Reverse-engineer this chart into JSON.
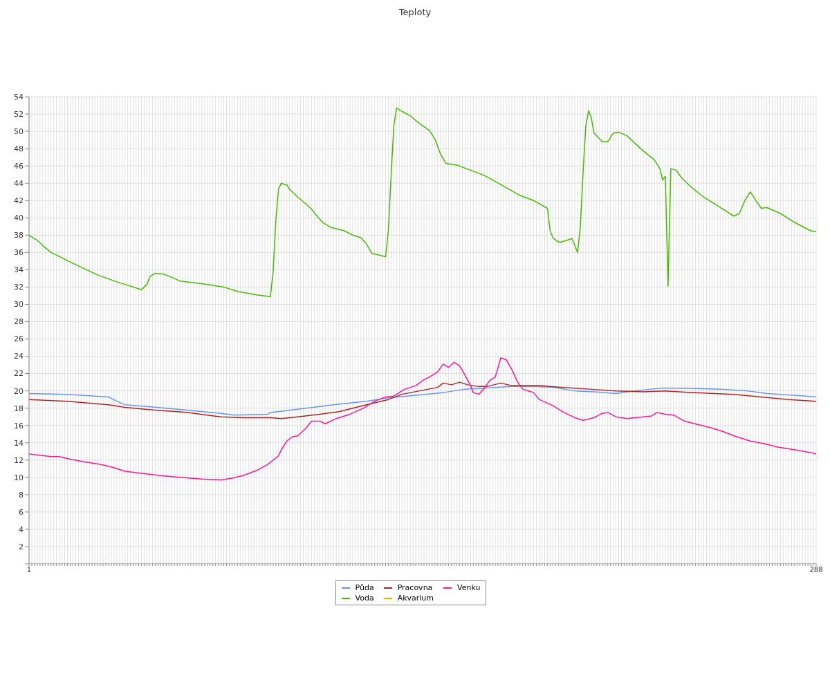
{
  "chart_data": {
    "type": "line",
    "title": "Teploty",
    "xlim": [
      1,
      288
    ],
    "xticks": [
      1,
      {
        "value": 2,
        "label": null
      },
      {
        "value": 3,
        "label": null
      },
      {
        "value": 4,
        "label": null
      },
      {
        "value": 5,
        "label": null
      },
      {
        "value": 6,
        "label": null
      },
      {
        "value": 7,
        "label": null
      },
      {
        "value": 8,
        "label": null
      },
      {
        "value": 9,
        "label": null
      },
      {
        "value": 10,
        "label": null
      },
      {
        "value": 11,
        "label": null
      },
      {
        "value": 12,
        "label": null
      },
      {
        "value": 13,
        "label": null
      },
      {
        "value": 14,
        "label": null
      },
      {
        "value": 15,
        "label": null
      },
      {
        "value": 16,
        "label": null
      },
      {
        "value": 17,
        "label": null
      },
      {
        "value": 18,
        "label": null
      },
      {
        "value": 19,
        "label": null
      },
      {
        "value": 20,
        "label": null
      },
      {
        "value": 21,
        "label": null
      },
      {
        "value": 22,
        "label": null
      },
      {
        "value": 23,
        "label": null
      },
      {
        "value": 24,
        "label": null
      },
      {
        "value": 25,
        "label": null
      },
      {
        "value": 26,
        "label": null
      },
      {
        "value": 27,
        "label": null
      },
      {
        "value": 28,
        "label": null
      },
      {
        "value": 29,
        "label": null
      },
      {
        "value": 30,
        "label": null
      },
      {
        "value": 31,
        "label": null
      },
      {
        "value": 32,
        "label": null
      },
      {
        "value": 33,
        "label": null
      },
      {
        "value": 34,
        "label": null
      },
      {
        "value": 35,
        "label": null
      },
      {
        "value": 36,
        "label": null
      },
      {
        "value": 37,
        "label": null
      },
      {
        "value": 38,
        "label": null
      },
      {
        "value": 39,
        "label": null
      },
      {
        "value": 40,
        "label": null
      },
      {
        "value": 41,
        "label": null
      },
      {
        "value": 42,
        "label": null
      },
      {
        "value": 43,
        "label": null
      },
      {
        "value": 44,
        "label": null
      },
      {
        "value": 45,
        "label": null
      },
      {
        "value": 46,
        "label": null
      },
      {
        "value": 47,
        "label": null
      },
      {
        "value": 48,
        "label": null
      },
      {
        "value": 49,
        "label": null
      },
      {
        "value": 50,
        "label": null
      },
      {
        "value": 51,
        "label": null
      },
      {
        "value": 52,
        "label": null
      },
      {
        "value": 53,
        "label": null
      },
      {
        "value": 54,
        "label": null
      },
      {
        "value": 55,
        "label": null
      },
      {
        "value": 56,
        "label": null
      },
      {
        "value": 57,
        "label": null
      },
      {
        "value": 58,
        "label": null
      },
      {
        "value": 59,
        "label": null
      },
      {
        "value": 60,
        "label": null
      },
      {
        "value": 61,
        "label": null
      },
      {
        "value": 62,
        "label": null
      },
      {
        "value": 63,
        "label": null
      },
      {
        "value": 64,
        "label": null
      },
      {
        "value": 65,
        "label": null
      },
      {
        "value": 66,
        "label": null
      },
      {
        "value": 67,
        "label": null
      },
      {
        "value": 68,
        "label": null
      },
      {
        "value": 69,
        "label": null
      },
      {
        "value": 70,
        "label": null
      },
      {
        "value": 71,
        "label": null
      },
      {
        "value": 72,
        "label": null
      },
      {
        "value": 73,
        "label": null
      },
      {
        "value": 74,
        "label": null
      },
      {
        "value": 75,
        "label": null
      },
      {
        "value": 76,
        "label": null
      },
      {
        "value": 77,
        "label": null
      },
      {
        "value": 78,
        "label": null
      },
      {
        "value": 79,
        "label": null
      },
      {
        "value": 80,
        "label": null
      },
      {
        "value": 81,
        "label": null
      },
      {
        "value": 82,
        "label": null
      },
      {
        "value": 83,
        "label": null
      },
      {
        "value": 84,
        "label": null
      },
      {
        "value": 85,
        "label": null
      },
      {
        "value": 86,
        "label": null
      },
      {
        "value": 87,
        "label": null
      },
      {
        "value": 88,
        "label": null
      },
      {
        "value": 89,
        "label": null
      },
      {
        "value": 90,
        "label": null
      },
      {
        "value": 91,
        "label": null
      },
      {
        "value": 92,
        "label": null
      },
      {
        "value": 93,
        "label": null
      },
      {
        "value": 94,
        "label": null
      },
      {
        "value": 95,
        "label": null
      },
      {
        "value": 96,
        "label": null
      },
      {
        "value": 97,
        "label": null
      },
      {
        "value": 98,
        "label": null
      },
      {
        "value": 99,
        "label": null
      },
      {
        "value": 100,
        "label": null
      },
      {
        "value": 101,
        "label": null
      },
      {
        "value": 102,
        "label": null
      },
      {
        "value": 103,
        "label": null
      },
      {
        "value": 104,
        "label": null
      },
      {
        "value": 105,
        "label": null
      },
      {
        "value": 106,
        "label": null
      },
      {
        "value": 107,
        "label": null
      },
      {
        "value": 108,
        "label": null
      },
      {
        "value": 109,
        "label": null
      },
      {
        "value": 110,
        "label": null
      },
      {
        "value": 111,
        "label": null
      },
      {
        "value": 112,
        "label": null
      },
      {
        "value": 113,
        "label": null
      },
      {
        "value": 114,
        "label": null
      },
      {
        "value": 115,
        "label": null
      },
      {
        "value": 116,
        "label": null
      },
      {
        "value": 117,
        "label": null
      },
      {
        "value": 118,
        "label": null
      },
      {
        "value": 119,
        "label": null
      },
      {
        "value": 120,
        "label": null
      },
      {
        "value": 121,
        "label": null
      },
      {
        "value": 122,
        "label": null
      },
      {
        "value": 123,
        "label": null
      },
      {
        "value": 124,
        "label": null
      },
      {
        "value": 125,
        "label": null
      },
      {
        "value": 126,
        "label": null
      },
      {
        "value": 127,
        "label": null
      },
      {
        "value": 128,
        "label": null
      },
      {
        "value": 129,
        "label": null
      },
      {
        "value": 130,
        "label": null
      },
      {
        "value": 131,
        "label": null
      },
      {
        "value": 132,
        "label": null
      },
      {
        "value": 133,
        "label": null
      },
      {
        "value": 134,
        "label": null
      },
      {
        "value": 135,
        "label": null
      },
      {
        "value": 136,
        "label": null
      },
      {
        "value": 137,
        "label": null
      },
      {
        "value": 138,
        "label": null
      },
      {
        "value": 139,
        "label": null
      },
      {
        "value": 140,
        "label": null
      },
      {
        "value": 141,
        "label": null
      },
      {
        "value": 142,
        "label": null
      },
      {
        "value": 143,
        "label": null
      },
      {
        "value": 144,
        "label": null
      },
      {
        "value": 145,
        "label": null
      },
      {
        "value": 146,
        "label": null
      },
      {
        "value": 147,
        "label": null
      },
      {
        "value": 148,
        "label": null
      },
      {
        "value": 149,
        "label": null
      },
      {
        "value": 150,
        "label": null
      },
      {
        "value": 151,
        "label": null
      },
      {
        "value": 152,
        "label": null
      },
      {
        "value": 153,
        "label": null
      },
      {
        "value": 154,
        "label": null
      },
      {
        "value": 155,
        "label": null
      },
      {
        "value": 156,
        "label": null
      },
      {
        "value": 157,
        "label": null
      },
      {
        "value": 158,
        "label": null
      },
      {
        "value": 159,
        "label": null
      },
      {
        "value": 160,
        "label": null
      },
      {
        "value": 161,
        "label": null
      },
      {
        "value": 162,
        "label": null
      },
      {
        "value": 163,
        "label": null
      },
      {
        "value": 164,
        "label": null
      },
      {
        "value": 165,
        "label": null
      },
      {
        "value": 166,
        "label": null
      },
      {
        "value": 167,
        "label": null
      },
      {
        "value": 168,
        "label": null
      },
      {
        "value": 169,
        "label": null
      },
      {
        "value": 170,
        "label": null
      },
      {
        "value": 171,
        "label": null
      },
      {
        "value": 172,
        "label": null
      },
      {
        "value": 173,
        "label": null
      },
      {
        "value": 174,
        "label": null
      },
      {
        "value": 175,
        "label": null
      },
      {
        "value": 176,
        "label": null
      },
      {
        "value": 177,
        "label": null
      },
      {
        "value": 178,
        "label": null
      },
      {
        "value": 179,
        "label": null
      },
      {
        "value": 180,
        "label": null
      },
      {
        "value": 181,
        "label": null
      },
      {
        "value": 182,
        "label": null
      },
      {
        "value": 183,
        "label": null
      },
      {
        "value": 184,
        "label": null
      },
      {
        "value": 185,
        "label": null
      },
      {
        "value": 186,
        "label": null
      },
      {
        "value": 187,
        "label": null
      },
      {
        "value": 188,
        "label": null
      },
      {
        "value": 189,
        "label": null
      },
      {
        "value": 190,
        "label": null
      },
      {
        "value": 191,
        "label": null
      },
      {
        "value": 192,
        "label": null
      },
      {
        "value": 193,
        "label": null
      },
      {
        "value": 194,
        "label": null
      },
      {
        "value": 195,
        "label": null
      },
      {
        "value": 196,
        "label": null
      },
      {
        "value": 197,
        "label": null
      },
      {
        "value": 198,
        "label": null
      },
      {
        "value": 199,
        "label": null
      },
      {
        "value": 200,
        "label": null
      },
      {
        "value": 201,
        "label": null
      },
      {
        "value": 202,
        "label": null
      },
      {
        "value": 203,
        "label": null
      },
      {
        "value": 204,
        "label": null
      },
      {
        "value": 205,
        "label": null
      },
      {
        "value": 206,
        "label": null
      },
      {
        "value": 207,
        "label": null
      },
      {
        "value": 208,
        "label": null
      },
      {
        "value": 209,
        "label": null
      },
      {
        "value": 210,
        "label": null
      },
      {
        "value": 211,
        "label": null
      },
      {
        "value": 212,
        "label": null
      },
      {
        "value": 213,
        "label": null
      },
      {
        "value": 214,
        "label": null
      },
      {
        "value": 215,
        "label": null
      },
      {
        "value": 216,
        "label": null
      },
      {
        "value": 217,
        "label": null
      },
      {
        "value": 218,
        "label": null
      },
      {
        "value": 219,
        "label": null
      },
      {
        "value": 220,
        "label": null
      },
      {
        "value": 221,
        "label": null
      },
      {
        "value": 222,
        "label": null
      },
      {
        "value": 223,
        "label": null
      },
      {
        "value": 224,
        "label": null
      },
      {
        "value": 225,
        "label": null
      },
      {
        "value": 226,
        "label": null
      },
      {
        "value": 227,
        "label": null
      },
      {
        "value": 228,
        "label": null
      },
      {
        "value": 229,
        "label": null
      },
      {
        "value": 230,
        "label": null
      },
      {
        "value": 231,
        "label": null
      },
      {
        "value": 232,
        "label": null
      },
      {
        "value": 233,
        "label": null
      },
      {
        "value": 234,
        "label": null
      },
      {
        "value": 235,
        "label": null
      },
      {
        "value": 236,
        "label": null
      },
      {
        "value": 237,
        "label": null
      },
      {
        "value": 238,
        "label": null
      },
      {
        "value": 239,
        "label": null
      },
      {
        "value": 240,
        "label": null
      },
      {
        "value": 241,
        "label": null
      },
      {
        "value": 242,
        "label": null
      },
      {
        "value": 243,
        "label": null
      },
      {
        "value": 244,
        "label": null
      },
      {
        "value": 245,
        "label": null
      },
      {
        "value": 246,
        "label": null
      },
      {
        "value": 247,
        "label": null
      },
      {
        "value": 248,
        "label": null
      },
      {
        "value": 249,
        "label": null
      },
      {
        "value": 250,
        "label": null
      },
      {
        "value": 251,
        "label": null
      },
      {
        "value": 252,
        "label": null
      },
      {
        "value": 253,
        "label": null
      },
      {
        "value": 254,
        "label": null
      },
      {
        "value": 255,
        "label": null
      },
      {
        "value": 256,
        "label": null
      },
      {
        "value": 257,
        "label": null
      },
      {
        "value": 258,
        "label": null
      },
      {
        "value": 259,
        "label": null
      },
      {
        "value": 260,
        "label": null
      },
      {
        "value": 261,
        "label": null
      },
      {
        "value": 262,
        "label": null
      },
      {
        "value": 263,
        "label": null
      },
      {
        "value": 264,
        "label": null
      },
      {
        "value": 265,
        "label": null
      },
      {
        "value": 266,
        "label": null
      },
      {
        "value": 267,
        "label": null
      },
      {
        "value": 268,
        "label": null
      },
      {
        "value": 269,
        "label": null
      },
      {
        "value": 270,
        "label": null
      },
      {
        "value": 271,
        "label": null
      },
      {
        "value": 272,
        "label": null
      },
      {
        "value": 273,
        "label": null
      },
      {
        "value": 274,
        "label": null
      },
      {
        "value": 275,
        "label": null
      },
      {
        "value": 276,
        "label": null
      },
      {
        "value": 277,
        "label": null
      },
      {
        "value": 278,
        "label": null
      },
      {
        "value": 279,
        "label": null
      },
      {
        "value": 280,
        "label": null
      },
      {
        "value": 281,
        "label": null
      },
      {
        "value": 282,
        "label": null
      },
      {
        "value": 283,
        "label": null
      },
      {
        "value": 284,
        "label": null
      },
      {
        "value": 285,
        "label": null
      },
      {
        "value": 286,
        "label": null
      },
      {
        "value": 287,
        "label": null
      },
      288
    ],
    "ylim": [
      0,
      54
    ],
    "yticks": [
      {
        "value": 0,
        "label": null
      },
      2,
      4,
      6,
      8,
      10,
      12,
      14,
      16,
      18,
      20,
      22,
      24,
      26,
      28,
      30,
      32,
      34,
      36,
      38,
      40,
      42,
      44,
      46,
      48,
      50,
      52,
      54
    ],
    "grid": true,
    "legend": "bottom",
    "series": [
      {
        "name": "Půda",
        "color": "#6495ed",
        "x": [
          1,
          15,
          30,
          33,
          36,
          44,
          51,
          61,
          71,
          76,
          88,
          89,
          102,
          112,
          124,
          132,
          142,
          152,
          160,
          167,
          177,
          185,
          192,
          200,
          207,
          215,
          222,
          231,
          240,
          253,
          263,
          270,
          280,
          288
        ],
        "values": [
          19.7,
          19.6,
          19.3,
          18.8,
          18.4,
          18.2,
          18.0,
          17.7,
          17.4,
          17.2,
          17.3,
          17.5,
          18.0,
          18.4,
          18.8,
          19.2,
          19.5,
          19.8,
          20.2,
          20.3,
          20.5,
          20.5,
          20.4,
          20.0,
          19.9,
          19.7,
          20.0,
          20.3,
          20.3,
          20.2,
          20.0,
          19.7,
          19.5,
          19.3
        ]
      },
      {
        "name": "Voda",
        "color": "#44bb00",
        "x": [
          1,
          4,
          6,
          9,
          11,
          16,
          20,
          26,
          33,
          38,
          42,
          44,
          45,
          47,
          50,
          54,
          56,
          64,
          72,
          77,
          84,
          89,
          90,
          91,
          92,
          93,
          95,
          96,
          99,
          102,
          104,
          106,
          108,
          111,
          116,
          119,
          122,
          124,
          126,
          131,
          132,
          133,
          134,
          135,
          137,
          140,
          143,
          147,
          149,
          151,
          153,
          157,
          162,
          167,
          171,
          176,
          180,
          185,
          190,
          191,
          192,
          194,
          195,
          199,
          201,
          202,
          203,
          204,
          205,
          206,
          207,
          210,
          212,
          214,
          216,
          219,
          224,
          229,
          231,
          232,
          233,
          234,
          235,
          237,
          239,
          243,
          247,
          253,
          258,
          260,
          262,
          264,
          266,
          268,
          270,
          275,
          280,
          286,
          288
        ],
        "values": [
          38.0,
          37.4,
          36.8,
          36.0,
          35.7,
          34.9,
          34.3,
          33.4,
          32.6,
          32.1,
          31.7,
          32.3,
          33.2,
          33.6,
          33.5,
          33.0,
          32.7,
          32.4,
          32.0,
          31.5,
          31.1,
          30.9,
          33.8,
          39.8,
          43.4,
          44.0,
          43.8,
          43.3,
          42.4,
          41.6,
          41.0,
          40.2,
          39.5,
          38.9,
          38.5,
          38.0,
          37.7,
          37.0,
          35.9,
          35.5,
          38.5,
          44.8,
          50.6,
          52.7,
          52.3,
          51.8,
          51.0,
          50.1,
          49.1,
          47.4,
          46.3,
          46.1,
          45.5,
          44.9,
          44.2,
          43.3,
          42.6,
          42.0,
          41.1,
          38.5,
          37.7,
          37.2,
          37.2,
          37.6,
          36.0,
          38.9,
          45.2,
          50.6,
          52.4,
          51.6,
          49.8,
          48.8,
          48.8,
          49.8,
          49.9,
          49.5,
          48.0,
          46.7,
          45.7,
          44.4,
          44.8,
          32.1,
          45.7,
          45.5,
          44.6,
          43.4,
          42.4,
          41.2,
          40.2,
          40.5,
          42.0,
          43.0,
          42.0,
          41.1,
          41.2,
          40.5,
          39.5,
          38.5,
          38.4
        ]
      },
      {
        "name": "Pracovna",
        "color": "#b22222",
        "x": [
          1,
          15,
          30,
          36,
          46,
          59,
          66,
          71,
          79,
          89,
          93,
          99,
          107,
          114,
          119,
          124,
          128,
          132,
          137,
          145,
          150,
          152,
          155,
          158,
          161,
          165,
          168,
          173,
          177,
          187,
          195,
          205,
          215,
          225,
          233,
          243,
          258,
          268,
          278,
          288
        ],
        "values": [
          19.0,
          18.8,
          18.4,
          18.1,
          17.8,
          17.5,
          17.2,
          17.0,
          16.9,
          16.9,
          16.8,
          17.0,
          17.3,
          17.6,
          18.0,
          18.4,
          18.7,
          19.0,
          19.6,
          20.1,
          20.4,
          20.9,
          20.7,
          21.0,
          20.7,
          20.5,
          20.5,
          20.9,
          20.6,
          20.6,
          20.4,
          20.2,
          20.0,
          19.9,
          20.0,
          19.8,
          19.6,
          19.3,
          19.0,
          18.8
        ]
      },
      {
        "name": "Akvarium",
        "color": "#ffa500",
        "x": [
          1,
          288
        ],
        "values": [
          0,
          0
        ]
      },
      {
        "name": "Venku",
        "color": "#ff1493",
        "x": [
          1,
          9,
          12,
          16,
          21,
          27,
          31,
          36,
          41,
          49,
          56,
          64,
          71,
          75,
          79,
          84,
          88,
          92,
          93,
          95,
          97,
          99,
          102,
          104,
          107,
          109,
          113,
          118,
          123,
          127,
          131,
          134,
          138,
          142,
          145,
          147,
          150,
          152,
          154,
          156,
          158,
          160,
          162,
          163,
          165,
          167,
          169,
          171,
          173,
          175,
          177,
          179,
          181,
          185,
          187,
          192,
          196,
          200,
          203,
          207,
          210,
          212,
          215,
          219,
          225,
          228,
          230,
          233,
          236,
          240,
          245,
          250,
          254,
          259,
          264,
          269,
          274,
          280,
          287,
          288
        ],
        "values": [
          12.7,
          12.4,
          12.4,
          12.1,
          11.8,
          11.5,
          11.2,
          10.7,
          10.5,
          10.2,
          10.0,
          9.8,
          9.7,
          9.9,
          10.2,
          10.8,
          11.5,
          12.5,
          13.2,
          14.2,
          14.7,
          14.8,
          15.7,
          16.5,
          16.5,
          16.2,
          16.8,
          17.3,
          18.0,
          18.8,
          19.3,
          19.4,
          20.2,
          20.6,
          21.3,
          21.6,
          22.2,
          23.1,
          22.7,
          23.3,
          22.9,
          21.8,
          20.6,
          19.8,
          19.6,
          20.3,
          21.2,
          21.6,
          23.8,
          23.6,
          22.5,
          21.1,
          20.2,
          19.8,
          19.0,
          18.3,
          17.5,
          16.9,
          16.6,
          16.9,
          17.4,
          17.5,
          17.0,
          16.8,
          17.0,
          17.1,
          17.5,
          17.3,
          17.2,
          16.5,
          16.1,
          15.7,
          15.3,
          14.7,
          14.2,
          13.9,
          13.5,
          13.2,
          12.8,
          12.7
        ]
      }
    ]
  }
}
